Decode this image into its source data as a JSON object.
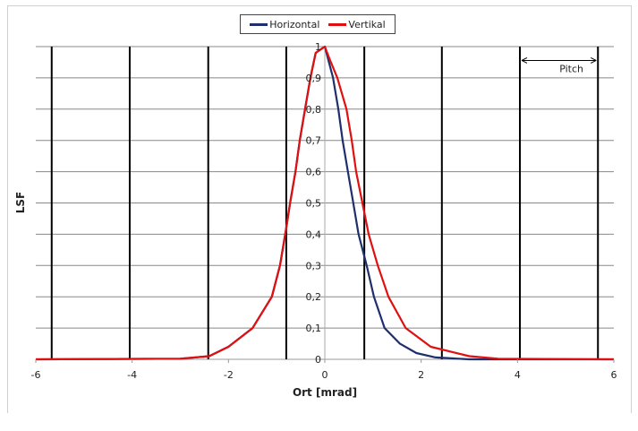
{
  "chart_data": {
    "type": "line",
    "title": "",
    "xlabel": "Ort [mrad]",
    "ylabel": "LSF",
    "xlim": [
      -6,
      6
    ],
    "ylim": [
      0,
      1
    ],
    "xticks": [
      -6,
      -4,
      -2,
      0,
      2,
      4,
      6
    ],
    "xtick_labels": [
      "-6",
      "-4",
      "-2",
      "0",
      "2",
      "4",
      "6"
    ],
    "yticks": [
      0,
      0.1,
      0.2,
      0.3,
      0.4,
      0.5,
      0.6,
      0.7,
      0.8,
      0.9,
      1
    ],
    "ytick_labels": [
      "0",
      "0,1",
      "0,2",
      "0,3",
      "0,4",
      "0,5",
      "0,6",
      "0,7",
      "0,8",
      "0,9",
      "1"
    ],
    "grid": "horizontal",
    "legend_position": "top-center",
    "pitch_lines": [
      -5.67,
      -4.05,
      -2.42,
      -0.8,
      0.82,
      2.43,
      4.05,
      5.67
    ],
    "annotation": {
      "text": "Pitch",
      "from": 4.05,
      "to": 5.67,
      "y": 0.95
    },
    "series": [
      {
        "name": "Horizontal",
        "color": "#1f2f6b",
        "x": [
          -6,
          -3,
          -2.4,
          -2,
          -1.5,
          -1.1,
          -0.93,
          -0.8,
          -0.72,
          -0.61,
          -0.52,
          -0.41,
          -0.3,
          -0.19,
          0,
          0.17,
          0.28,
          0.37,
          0.48,
          0.59,
          0.7,
          0.87,
          1.02,
          1.24,
          1.56,
          1.9,
          2.3,
          3,
          6
        ],
        "y": [
          0,
          0.002,
          0.01,
          0.04,
          0.1,
          0.2,
          0.3,
          0.42,
          0.5,
          0.6,
          0.7,
          0.8,
          0.9,
          0.98,
          1,
          0.9,
          0.8,
          0.7,
          0.6,
          0.5,
          0.4,
          0.3,
          0.2,
          0.1,
          0.05,
          0.02,
          0.006,
          0,
          0
        ]
      },
      {
        "name": "Vertikal",
        "color": "#e01010",
        "x": [
          -6,
          -3,
          -2.4,
          -2,
          -1.5,
          -1.1,
          -0.93,
          -0.8,
          -0.72,
          -0.61,
          -0.52,
          -0.41,
          -0.3,
          -0.19,
          0,
          0.1,
          0.26,
          0.45,
          0.56,
          0.65,
          0.78,
          0.91,
          1.1,
          1.32,
          1.68,
          2.2,
          3,
          3.6,
          6
        ],
        "y": [
          0,
          0.002,
          0.01,
          0.04,
          0.1,
          0.2,
          0.3,
          0.42,
          0.5,
          0.6,
          0.7,
          0.8,
          0.9,
          0.98,
          1,
          0.96,
          0.9,
          0.8,
          0.7,
          0.6,
          0.5,
          0.4,
          0.3,
          0.2,
          0.1,
          0.04,
          0.01,
          0.002,
          0
        ]
      }
    ]
  }
}
